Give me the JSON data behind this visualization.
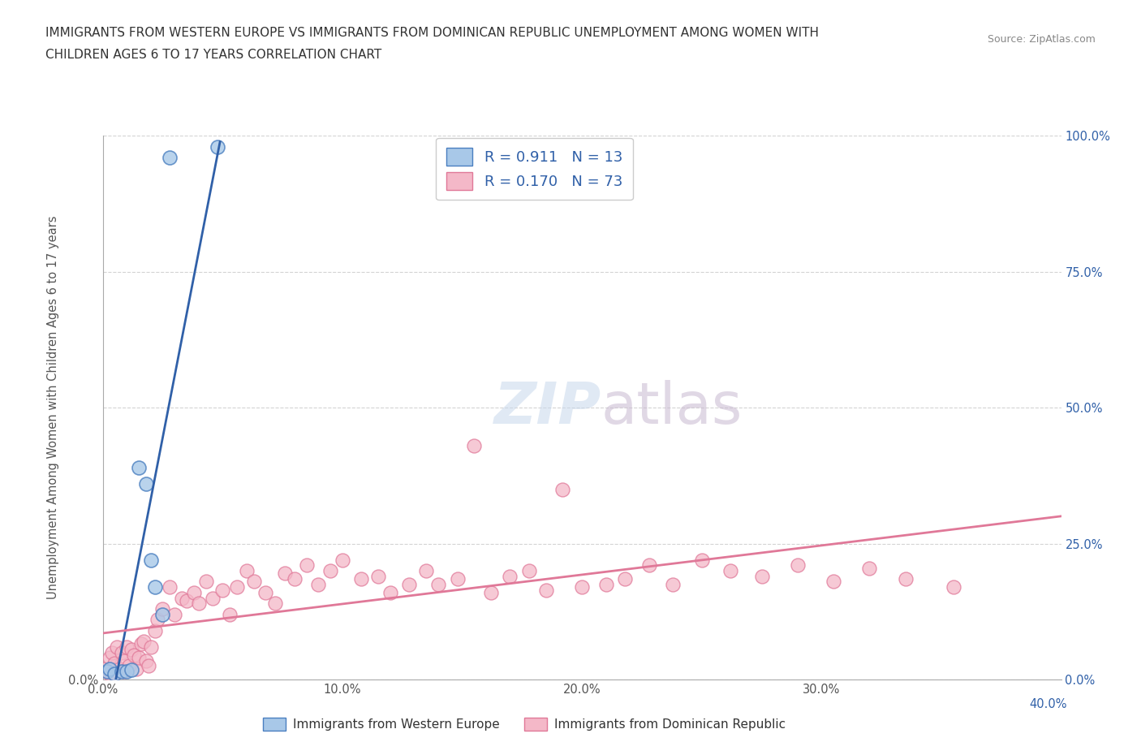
{
  "title_line1": "IMMIGRANTS FROM WESTERN EUROPE VS IMMIGRANTS FROM DOMINICAN REPUBLIC UNEMPLOYMENT AMONG WOMEN WITH",
  "title_line2": "CHILDREN AGES 6 TO 17 YEARS CORRELATION CHART",
  "source": "Source: ZipAtlas.com",
  "ylabel": "Unemployment Among Women with Children Ages 6 to 17 years",
  "xlim": [
    0.0,
    0.4
  ],
  "ylim": [
    0.0,
    1.0
  ],
  "xticks": [
    0.0,
    0.1,
    0.2,
    0.3,
    0.4
  ],
  "yticks": [
    0.0,
    0.25,
    0.5,
    0.75,
    1.0
  ],
  "xtick_labels": [
    "0.0%",
    "10.0%",
    "20.0%",
    "30.0%",
    "40.0%"
  ],
  "ytick_labels_right": [
    "0.0%",
    "25.0%",
    "50.0%",
    "75.0%",
    "100.0%"
  ],
  "blue_R": 0.911,
  "blue_N": 13,
  "pink_R": 0.17,
  "pink_N": 73,
  "blue_color": "#a8c8e8",
  "pink_color": "#f4b8c8",
  "blue_edge_color": "#4a7fc0",
  "pink_edge_color": "#e07898",
  "blue_line_color": "#3060a8",
  "pink_line_color": "#e07898",
  "legend_label_blue": "Immigrants from Western Europe",
  "legend_label_pink": "Immigrants from Dominican Republic",
  "watermark_zip": "ZIP",
  "watermark_atlas": "atlas",
  "blue_scatter_x": [
    0.002,
    0.003,
    0.005,
    0.008,
    0.01,
    0.012,
    0.015,
    0.018,
    0.02,
    0.022,
    0.025,
    0.028,
    0.048
  ],
  "blue_scatter_y": [
    0.015,
    0.02,
    0.01,
    0.015,
    0.015,
    0.018,
    0.39,
    0.36,
    0.22,
    0.17,
    0.12,
    0.96,
    0.98
  ],
  "pink_scatter_x": [
    0.001,
    0.002,
    0.003,
    0.003,
    0.004,
    0.005,
    0.005,
    0.006,
    0.007,
    0.008,
    0.009,
    0.009,
    0.01,
    0.011,
    0.012,
    0.013,
    0.014,
    0.015,
    0.016,
    0.017,
    0.018,
    0.019,
    0.02,
    0.022,
    0.023,
    0.025,
    0.028,
    0.03,
    0.033,
    0.035,
    0.038,
    0.04,
    0.043,
    0.046,
    0.05,
    0.053,
    0.056,
    0.06,
    0.063,
    0.068,
    0.072,
    0.076,
    0.08,
    0.085,
    0.09,
    0.095,
    0.1,
    0.108,
    0.115,
    0.12,
    0.128,
    0.135,
    0.14,
    0.148,
    0.155,
    0.162,
    0.17,
    0.178,
    0.185,
    0.192,
    0.2,
    0.21,
    0.218,
    0.228,
    0.238,
    0.25,
    0.262,
    0.275,
    0.29,
    0.305,
    0.32,
    0.335,
    0.355
  ],
  "pink_scatter_y": [
    0.02,
    0.015,
    0.04,
    0.01,
    0.05,
    0.03,
    0.01,
    0.06,
    0.02,
    0.05,
    0.015,
    0.035,
    0.06,
    0.025,
    0.055,
    0.045,
    0.02,
    0.04,
    0.065,
    0.07,
    0.035,
    0.025,
    0.06,
    0.09,
    0.11,
    0.13,
    0.17,
    0.12,
    0.15,
    0.145,
    0.16,
    0.14,
    0.18,
    0.15,
    0.165,
    0.12,
    0.17,
    0.2,
    0.18,
    0.16,
    0.14,
    0.195,
    0.185,
    0.21,
    0.175,
    0.2,
    0.22,
    0.185,
    0.19,
    0.16,
    0.175,
    0.2,
    0.175,
    0.185,
    0.43,
    0.16,
    0.19,
    0.2,
    0.165,
    0.35,
    0.17,
    0.175,
    0.185,
    0.21,
    0.175,
    0.22,
    0.2,
    0.19,
    0.21,
    0.18,
    0.205,
    0.185,
    0.17
  ]
}
